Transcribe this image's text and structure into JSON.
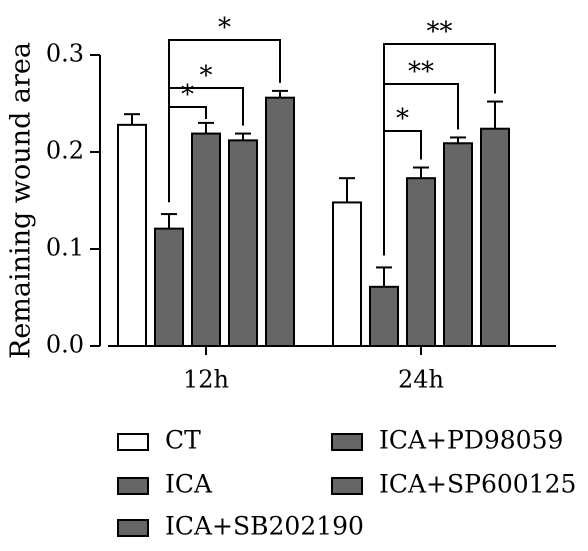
{
  "chart_data": {
    "type": "bar",
    "ylabel": "Remaining wound area",
    "categories": [
      "12h",
      "24h"
    ],
    "ylim": [
      0.0,
      0.3
    ],
    "yticks": [
      0.0,
      0.1,
      0.2,
      0.3
    ],
    "ytick_labels": [
      "0.0",
      "0.1",
      "0.2",
      "0.3"
    ],
    "series": [
      {
        "name": "CT",
        "color": "#ffffff",
        "values": [
          0.228,
          0.148
        ],
        "errors": [
          0.011,
          0.025
        ]
      },
      {
        "name": "ICA",
        "color": "#666666",
        "values": [
          0.121,
          0.061
        ],
        "errors": [
          0.015,
          0.02
        ]
      },
      {
        "name": "ICA+SB202190",
        "color": "#666666",
        "values": [
          0.219,
          0.173
        ],
        "errors": [
          0.011,
          0.011
        ]
      },
      {
        "name": "ICA+PD98059",
        "color": "#666666",
        "values": [
          0.212,
          0.209
        ],
        "errors": [
          0.007,
          0.006
        ]
      },
      {
        "name": "ICA+SP600125",
        "color": "#666666",
        "values": [
          0.256,
          0.224
        ],
        "errors": [
          0.007,
          0.028
        ]
      }
    ],
    "significance": [
      {
        "category": "12h",
        "from": "ICA",
        "to": "ICA+SB202190",
        "label": "*"
      },
      {
        "category": "12h",
        "from": "ICA",
        "to": "ICA+PD98059",
        "label": "*"
      },
      {
        "category": "12h",
        "from": "ICA",
        "to": "ICA+SP600125",
        "label": "*"
      },
      {
        "category": "24h",
        "from": "ICA",
        "to": "ICA+SB202190",
        "label": "*"
      },
      {
        "category": "24h",
        "from": "ICA",
        "to": "ICA+PD98059",
        "label": "**"
      },
      {
        "category": "24h",
        "from": "ICA",
        "to": "ICA+SP600125",
        "label": "**"
      }
    ],
    "grid": false,
    "legend_position": "bottom"
  }
}
